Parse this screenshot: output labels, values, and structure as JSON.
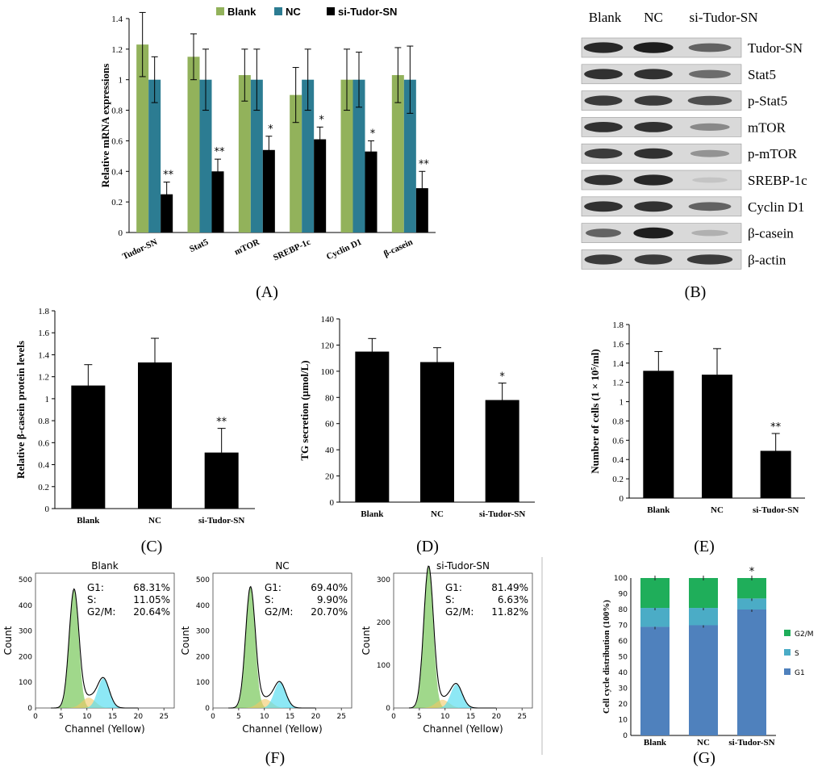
{
  "chart_data": [
    {
      "id": "A",
      "type": "bar",
      "panel_label": "(A)",
      "title": "",
      "xlabel": "",
      "ylabel": "Relative mRNA expressions",
      "ylim": [
        0,
        1.4
      ],
      "yticks": [
        "0",
        "0.2",
        "0.4",
        "0.6",
        "0.8",
        "1",
        "1.2",
        "1.4"
      ],
      "categories": [
        "Tudor-SN",
        "Stat5",
        "mTOR",
        "SREBP-1c",
        "Cyclin D1",
        "β-casein"
      ],
      "legend_position": "top",
      "series": [
        {
          "name": "Blank",
          "color": "#92b25b",
          "values": [
            1.23,
            1.15,
            1.03,
            0.9,
            1.0,
            1.03
          ],
          "errors": [
            0.21,
            0.15,
            0.17,
            0.18,
            0.2,
            0.18
          ]
        },
        {
          "name": "NC",
          "color": "#2c7c92",
          "values": [
            1.0,
            1.0,
            1.0,
            1.0,
            1.0,
            1.0
          ],
          "errors": [
            0.15,
            0.2,
            0.2,
            0.2,
            0.18,
            0.22
          ]
        },
        {
          "name": "si-Tudor-SN",
          "color": "#000000",
          "values": [
            0.25,
            0.4,
            0.54,
            0.61,
            0.53,
            0.29
          ],
          "errors": [
            0.08,
            0.08,
            0.09,
            0.08,
            0.07,
            0.11
          ]
        }
      ],
      "significance": [
        "**",
        "**",
        "*",
        "*",
        "*",
        "**"
      ]
    },
    {
      "id": "C",
      "type": "bar",
      "panel_label": "(C)",
      "ylabel": "Relative β-casein protein levels",
      "xlabel": "",
      "ylim": [
        0,
        1.8
      ],
      "yticks": [
        "0",
        "0.2",
        "0.4",
        "0.6",
        "0.8",
        "1",
        "1.2",
        "1.4",
        "1.6",
        "1.8"
      ],
      "categories": [
        "Blank",
        "NC",
        "si-Tudor-SN"
      ],
      "values": [
        1.12,
        1.33,
        0.51
      ],
      "errors": [
        0.19,
        0.22,
        0.22
      ],
      "significance": [
        "",
        "",
        "**"
      ]
    },
    {
      "id": "D",
      "type": "bar",
      "panel_label": "(D)",
      "ylabel": "TG secretion (µmol/L)",
      "xlabel": "",
      "ylim": [
        0,
        140
      ],
      "yticks": [
        "0",
        "20",
        "40",
        "60",
        "80",
        "100",
        "120",
        "140"
      ],
      "categories": [
        "Blank",
        "NC",
        "si-Tudor-SN"
      ],
      "values": [
        115,
        107,
        78
      ],
      "errors": [
        10,
        11,
        13
      ],
      "significance": [
        "",
        "",
        "*"
      ]
    },
    {
      "id": "E",
      "type": "bar",
      "panel_label": "(E)",
      "ylabel": "Number of cells (1 × 10⁵/ml)",
      "xlabel": "",
      "ylim": [
        0,
        1.8
      ],
      "yticks": [
        "0",
        "0.2",
        "0.4",
        "0.6",
        "0.8",
        "1",
        "1.2",
        "1.4",
        "1.6",
        "1.8"
      ],
      "categories": [
        "Blank",
        "NC",
        "si-Tudor-SN"
      ],
      "values": [
        1.32,
        1.28,
        0.49
      ],
      "errors": [
        0.2,
        0.27,
        0.18
      ],
      "significance": [
        "",
        "",
        "**"
      ]
    },
    {
      "id": "F",
      "type": "histogram",
      "panel_label": "(F)",
      "xlabel": "Channel (Yellow)",
      "ylabel": "Count",
      "plots": [
        {
          "title": "Blank",
          "ylim": [
            0,
            500
          ],
          "yticks": [
            "0",
            "100",
            "200",
            "300",
            "400",
            "500"
          ],
          "xticks": [
            "0",
            "5",
            "10",
            "15",
            "20",
            "25"
          ],
          "stats": [
            [
              "G1:",
              "68.31%"
            ],
            [
              "S:",
              "11.05%"
            ],
            [
              "G2/M:",
              "20.64%"
            ]
          ],
          "g1_peak": [
            7.5,
            460
          ],
          "g2_peak": [
            13.2,
            115
          ]
        },
        {
          "title": "NC",
          "ylim": [
            0,
            500
          ],
          "yticks": [
            "0",
            "100",
            "200",
            "300",
            "400",
            "500"
          ],
          "xticks": [
            "0",
            "5",
            "10",
            "15",
            "20",
            "25"
          ],
          "stats": [
            [
              "G1:",
              "69.40%"
            ],
            [
              "S:",
              "9.90%"
            ],
            [
              "G2/M:",
              "20.70%"
            ]
          ],
          "g1_peak": [
            7.3,
            470
          ],
          "g2_peak": [
            13.0,
            100
          ]
        },
        {
          "title": "si-Tudor-SN",
          "ylim": [
            0,
            300
          ],
          "yticks": [
            "0",
            "100",
            "200",
            "300"
          ],
          "xticks": [
            "0",
            "5",
            "10",
            "15",
            "20",
            "25"
          ],
          "stats": [
            [
              "G1:",
              "81.49%"
            ],
            [
              "S:",
              "6.63%"
            ],
            [
              "G2/M:",
              "11.82%"
            ]
          ],
          "g1_peak": [
            6.8,
            330
          ],
          "g2_peak": [
            12.2,
            55
          ]
        }
      ]
    },
    {
      "id": "G",
      "type": "stacked_bar",
      "panel_label": "(G)",
      "ylabel": "Cell cycle distribution (100%)",
      "xlabel": "",
      "ylim": [
        0,
        100
      ],
      "yticks": [
        "0",
        "10",
        "20",
        "30",
        "40",
        "50",
        "60",
        "70",
        "80",
        "90",
        "100"
      ],
      "categories": [
        "Blank",
        "NC",
        "si-Tudor-SN"
      ],
      "legend_position": "right",
      "series": [
        {
          "name": "G1",
          "color": "#4f81bd",
          "values": [
            69,
            70,
            80
          ]
        },
        {
          "name": "S",
          "color": "#4bacc6",
          "values": [
            12,
            11,
            7
          ]
        },
        {
          "name": "G2/M",
          "color": "#1fae5a",
          "values": [
            19,
            19,
            13
          ]
        }
      ],
      "significance": [
        "",
        "",
        "*"
      ]
    }
  ],
  "western_blot": {
    "panel_label": "(B)",
    "columns": [
      "Blank",
      "NC",
      "si-Tudor-SN"
    ],
    "rows": [
      {
        "label": "Tudor-SN",
        "intensity": [
          0.9,
          0.95,
          0.6
        ]
      },
      {
        "label": "Stat5",
        "intensity": [
          0.85,
          0.85,
          0.55
        ]
      },
      {
        "label": "p-Stat5",
        "intensity": [
          0.8,
          0.8,
          0.7
        ]
      },
      {
        "label": "mTOR",
        "intensity": [
          0.85,
          0.85,
          0.4
        ]
      },
      {
        "label": "p-mTOR",
        "intensity": [
          0.8,
          0.85,
          0.35
        ]
      },
      {
        "label": "SREBP-1c",
        "intensity": [
          0.85,
          0.9,
          0.1
        ]
      },
      {
        "label": "Cyclin D1",
        "intensity": [
          0.85,
          0.85,
          0.6
        ]
      },
      {
        "label": "β-casein",
        "intensity": [
          0.6,
          0.95,
          0.2
        ]
      },
      {
        "label": "β-actin",
        "intensity": [
          0.8,
          0.8,
          0.8
        ]
      }
    ]
  }
}
